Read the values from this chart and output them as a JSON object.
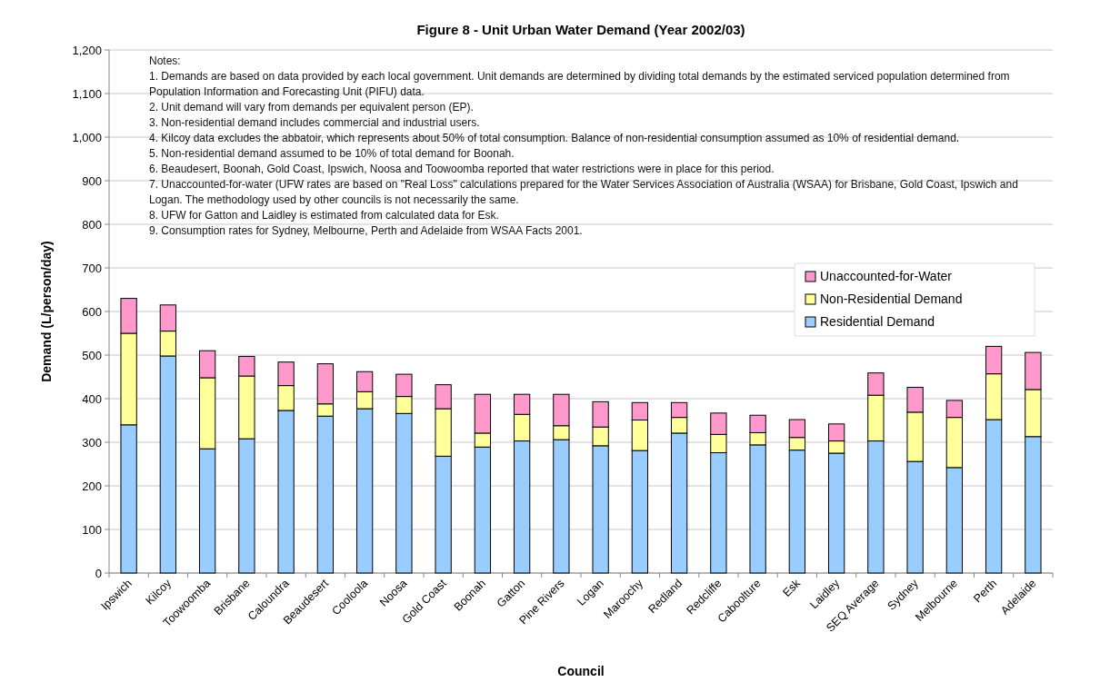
{
  "chart_data": {
    "type": "bar",
    "stacked": true,
    "title": "Figure 8 - Unit Urban Water Demand (Year 2002/03)",
    "xlabel": "Council",
    "ylabel": "Demand (L/person/day)",
    "categories": [
      "Ipswich",
      "Kilcoy",
      "Toowoomba",
      "Brisbane",
      "Caloundra",
      "Beaudesert",
      "Cooloola",
      "Noosa",
      "Gold Coast",
      "Boonah",
      "Gatton",
      "Pine Rivers",
      "Logan",
      "Maroochy",
      "Redland",
      "Redcliffe",
      "Caboolture",
      "Esk",
      "Laidley",
      "SEQ Average",
      "Sydney",
      "Melbourne",
      "Perth",
      "Adelaide"
    ],
    "series": [
      {
        "name": "Residential Demand",
        "color": "#99ccff",
        "values": [
          340,
          498,
          285,
          308,
          373,
          360,
          377,
          366,
          268,
          289,
          303,
          306,
          292,
          281,
          321,
          276,
          294,
          282,
          275,
          303,
          256,
          242,
          352,
          313
        ]
      },
      {
        "name": "Non-Residential Demand",
        "color": "#ffff99",
        "values": [
          210,
          57,
          163,
          144,
          57,
          28,
          39,
          39,
          109,
          32,
          61,
          32,
          43,
          70,
          36,
          42,
          28,
          29,
          28,
          105,
          113,
          115,
          105,
          108
        ]
      },
      {
        "name": "Unaccounted-for-Water",
        "color": "#ff99cc",
        "values": [
          80,
          60,
          62,
          45,
          54,
          92,
          46,
          51,
          55,
          89,
          46,
          72,
          58,
          40,
          34,
          49,
          40,
          41,
          39,
          51,
          57,
          39,
          63,
          85
        ]
      }
    ],
    "ylim": [
      0,
      1200
    ],
    "yticks": [
      0,
      100,
      200,
      300,
      400,
      500,
      600,
      700,
      800,
      900,
      {
        "value": 1000,
        "label": "1,000"
      },
      {
        "value": 1100,
        "label": "1,100"
      },
      {
        "value": 1200,
        "label": "1,200"
      }
    ],
    "grid": "y",
    "legend": "right",
    "annotations": [
      "Notes:",
      "1. Demands are based on data provided by each local government.  Unit demands are determined by dividing total demands by the estimated serviced population determined from Population Information and Forecasting Unit (PIFU) data.",
      "2. Unit demand will vary from demands per equivalent person (EP).",
      "3. Non-residential demand includes commercial and industrial users.",
      "4. Kilcoy data excludes the abbatoir, which represents about 50% of total consumption.  Balance of non-residential consumption assumed as 10% of residential demand.",
      "5. Non-residential demand assumed to be 10% of total demand for Boonah.",
      "6. Beaudesert, Boonah, Gold Coast, Ipswich, Noosa and Toowoomba reported that water restrictions were in place for this period.",
      "7. Unaccounted-for-water (UFW rates are based on \"Real Loss\" calculations prepared for the Water Services Association of Australia (WSAA) for Brisbane, Gold Coast, Ipswich and Logan.  The methodology used by other councils is not necessarily the same.",
      "8. UFW for Gatton and Laidley is estimated from calculated data for Esk.",
      "9. Consumption rates for Sydney, Melbourne, Perth and Adelaide from WSAA Facts 2001."
    ]
  }
}
